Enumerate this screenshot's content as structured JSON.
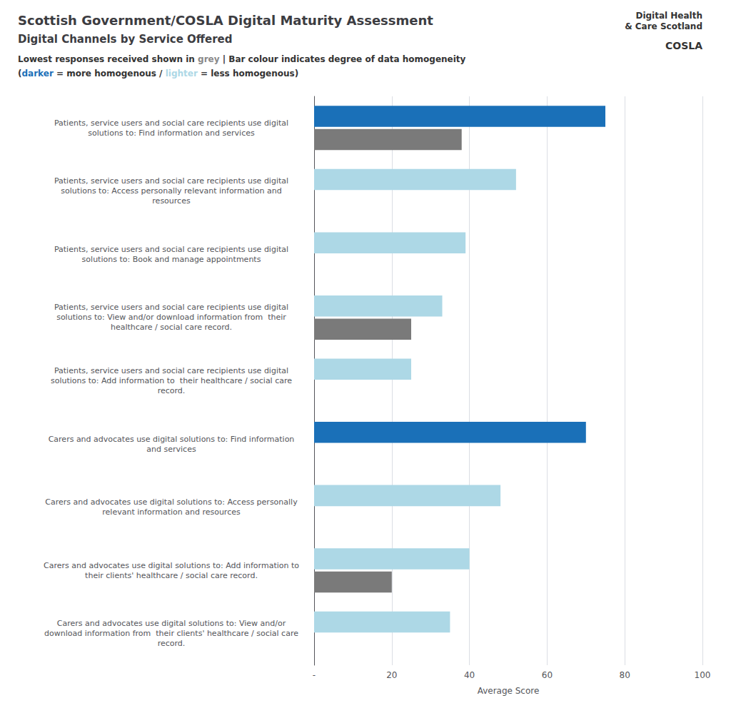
{
  "chart_data": {
    "type": "bar",
    "orientation": "horizontal",
    "title": "Scottish Government/COSLA Digital Maturity Assessment",
    "subtitle": "Digital Channels by Service Offered",
    "caption_lines": [
      [
        {
          "text": "Lowest responses received shown in "
        },
        {
          "text": "grey",
          "color": "#888888"
        },
        {
          "text": " | Bar colour indicates degree of data homogeneity"
        }
      ],
      [
        {
          "text": "("
        },
        {
          "text": "darker",
          "color": "#1a70b8"
        },
        {
          "text": " = more homogenous / "
        },
        {
          "text": "lighter",
          "color": "#add8e6"
        },
        {
          "text": " = less homogenous)"
        }
      ]
    ],
    "annotations": [
      "Digital Health\n& Care Scotland",
      "COSLA"
    ],
    "xlabel": "Average Score",
    "categories": [
      "Patients, service users and social care recipients use digital\nsolutions to: Find information and services",
      "Patients, service users and social care recipients use digital\nsolutions to: Access personally relevant information and\nresources",
      "Patients, service users and social care recipients use digital\nsolutions to: Book and manage appointments",
      "Patients, service users and social care recipients use digital\nsolutions to: View and/or download information from  their\nhealthcare / social care record.",
      "Patients, service users and social care recipients use digital\nsolutions to: Add information to  their healthcare / social care\nrecord.",
      "Carers and advocates use digital solutions to: Find information\nand services",
      "Carers and advocates use digital solutions to: Access personally\nrelevant information and resources",
      "Carers and advocates use digital solutions to: Add information to\ntheir clients' healthcare / social care record.",
      "Carers and advocates use digital solutions to: View and/or\ndownload information from  their clients' healthcare / social care\nrecord."
    ],
    "series": [
      {
        "values": [
          75,
          52,
          39,
          33,
          25,
          70,
          48,
          40,
          35
        ],
        "colors": [
          "#1a70b8",
          "#add8e6",
          "#add8e6",
          "#add8e6",
          "#add8e6",
          "#1a70b8",
          "#add8e6",
          "#add8e6",
          "#add8e6"
        ]
      },
      {
        "values": [
          38,
          0,
          0,
          25,
          0,
          0,
          0,
          20,
          0
        ],
        "color": "#7a7a7a"
      }
    ],
    "xlim": [
      0,
      100
    ],
    "xticks": [
      {
        "value": 0,
        "label": "-"
      },
      20,
      40,
      60,
      80,
      100
    ],
    "grid": true
  }
}
